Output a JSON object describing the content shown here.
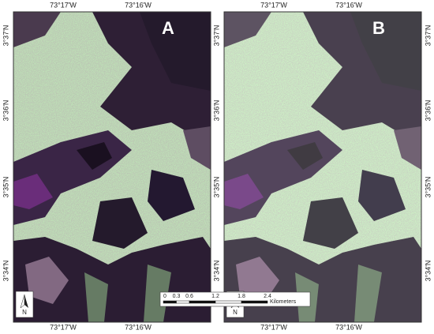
{
  "panels": [
    {
      "label": "A"
    },
    {
      "label": "B"
    }
  ],
  "longitude_labels": [
    "73°17'W",
    "73°16'W"
  ],
  "latitude_labels": [
    "3°37'N",
    "3°36'N",
    "3°35'N",
    "3°34'N"
  ],
  "scale_bar": {
    "ticks": [
      0,
      0.3,
      0.6,
      1.2,
      1.8,
      2.4
    ],
    "unit": "Kilometers"
  },
  "north_arrow": "N"
}
